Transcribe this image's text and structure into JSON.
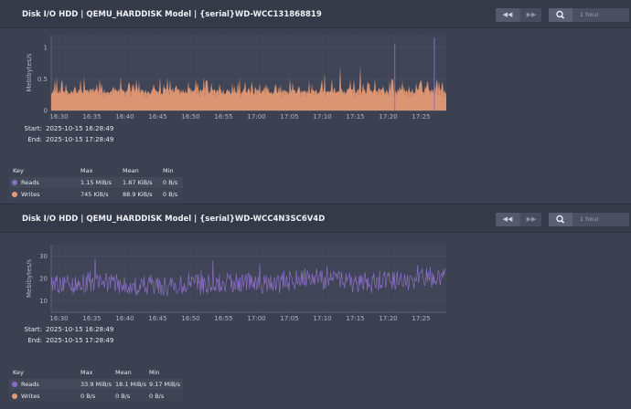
{
  "charts": [
    {
      "title": "Disk I/O HDD | QEMU_HARDDISK Model | {serial}WD-WCC131868819",
      "ylabel": "Mebibytes/s",
      "yticks": [
        "0",
        "0.5",
        "1"
      ],
      "xticks": [
        "16:30",
        "16:35",
        "16:40",
        "16:45",
        "16:50",
        "16:55",
        "17:00",
        "17:05",
        "17:10",
        "17:15",
        "17:20",
        "17:25"
      ],
      "start_label": "Start:",
      "start": "2025-10-15 16:28:49",
      "end_label": "End:",
      "end": "2025-10-15 17:28:49",
      "zoom_label": "1 hour",
      "legend": {
        "headers": [
          "Key",
          "Max",
          "Mean",
          "Min"
        ],
        "rows": [
          {
            "key": "Reads",
            "max": "1.15 MiB/s",
            "mean": "1.87 KiB/s",
            "min": "0 B/s",
            "color": "#8a6cc4"
          },
          {
            "key": "Writes",
            "max": "745 KiB/s",
            "mean": "88.9 KiB/s",
            "min": "0 B/s",
            "color": "#e59a74"
          }
        ]
      }
    },
    {
      "title": "Disk I/O HDD | QEMU_HARDDISK Model | {serial}WD-WCC4N3SC6V4D",
      "ylabel": "Mebibytes/s",
      "yticks": [
        "10",
        "20",
        "30"
      ],
      "xticks": [
        "16:30",
        "16:35",
        "16:40",
        "16:45",
        "16:50",
        "16:55",
        "17:00",
        "17:05",
        "17:10",
        "17:15",
        "17:20",
        "17:25"
      ],
      "start_label": "Start:",
      "start": "2025-10-15 16:28:49",
      "end_label": "End:",
      "end": "2025-10-15 17:28:49",
      "zoom_label": "1 hour",
      "legend": {
        "headers": [
          "Key",
          "Max",
          "Mean",
          "Min"
        ],
        "rows": [
          {
            "key": "Reads",
            "max": "33.9 MiB/s",
            "mean": "18.1 MiB/s",
            "min": "9.17 MiB/s",
            "color": "#8a6cc4"
          },
          {
            "key": "Writes",
            "max": "0 B/s",
            "mean": "0 B/s",
            "min": "0 B/s",
            "color": "#e59a74"
          }
        ]
      }
    }
  ],
  "buttons": {
    "rewind_icon": "rewind-icon",
    "forward_icon": "fast-forward-icon",
    "zoom_icon": "magnifier-icon"
  },
  "chart_data": [
    {
      "type": "area",
      "ylabel": "Mebibytes/s",
      "ylim": [
        0,
        1.2
      ],
      "x_range": [
        "2025-10-15 16:28:49",
        "2025-10-15 17:28:49"
      ],
      "grid": true,
      "series": [
        {
          "name": "Writes",
          "color": "#e59a74",
          "baseline_mibs": 0.3,
          "peak_mibs": 0.73
        },
        {
          "name": "Reads",
          "color": "#8a6cc4",
          "mean_kibs": 1.87,
          "max_mibs": 1.15,
          "spikes_at": [
            "17:21",
            "17:27"
          ]
        }
      ]
    },
    {
      "type": "line",
      "ylabel": "Mebibytes/s",
      "ylim": [
        5,
        35
      ],
      "x_range": [
        "2025-10-15 16:28:49",
        "2025-10-15 17:28:49"
      ],
      "grid": true,
      "series": [
        {
          "name": "Reads",
          "color": "#8a6cc4",
          "mean_mibs": 18.1,
          "max_mibs": 33.9,
          "min_mibs": 9.17
        },
        {
          "name": "Writes",
          "color": "#e59a74",
          "value_mibs": 0
        }
      ]
    }
  ]
}
